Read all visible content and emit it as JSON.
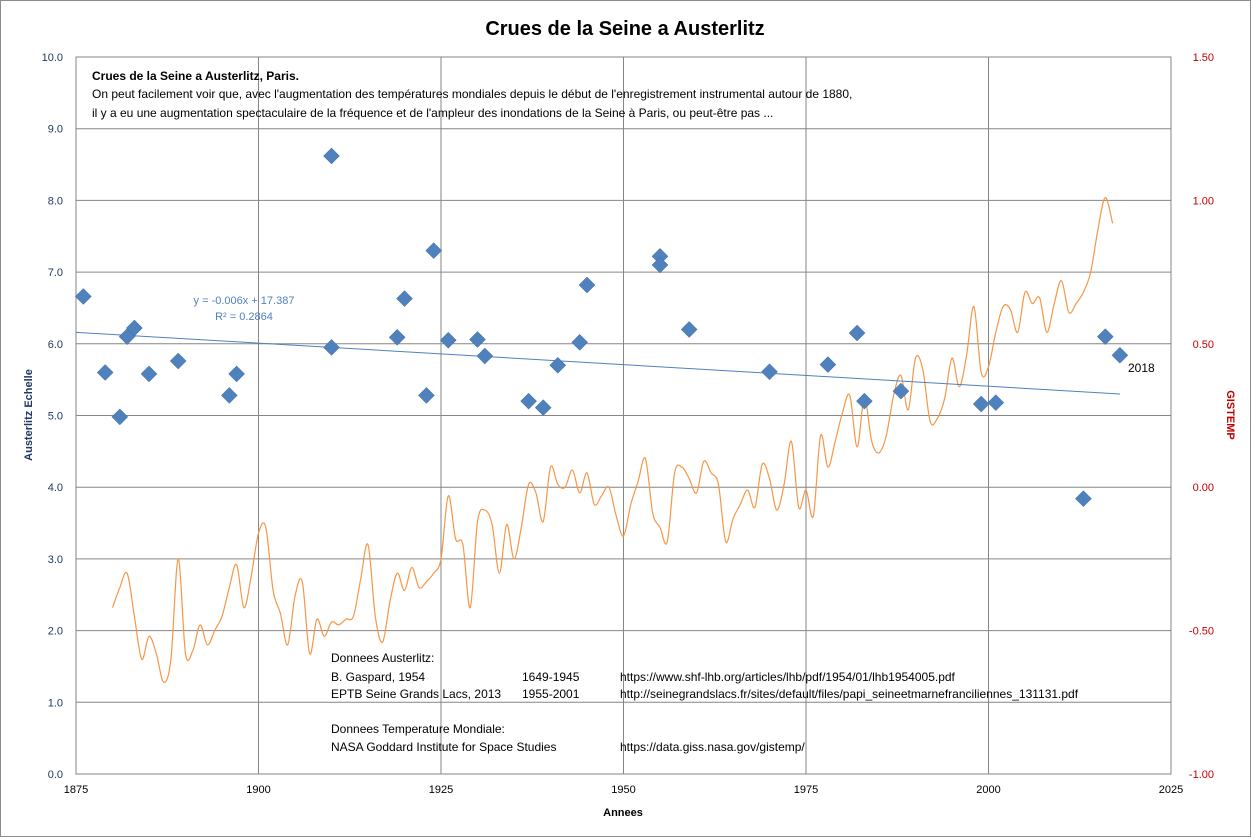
{
  "chart_data": {
    "type": "scatter",
    "title": "Crues de la Seine a Austerlitz",
    "xlabel": "Annees",
    "ylabel": "Austerlitz  Echelle",
    "y2label": "GISTEMP",
    "xlim": [
      1875,
      2025
    ],
    "ylim": [
      0,
      10
    ],
    "y2lim": [
      -1.0,
      1.5
    ],
    "x_ticks": [
      "1875",
      "1900",
      "1925",
      "1950",
      "1975",
      "2000",
      "2025"
    ],
    "y_ticks": [
      "0.0",
      "1.0",
      "2.0",
      "3.0",
      "4.0",
      "5.0",
      "6.0",
      "7.0",
      "8.0",
      "9.0",
      "10.0"
    ],
    "y2_ticks": [
      "-1.00",
      "-0.50",
      "0.00",
      "0.50",
      "1.00",
      "1.50"
    ],
    "grid": true,
    "colors": {
      "points": "#4f81bd",
      "temperature": "#f79646",
      "trend": "#4f81bd",
      "right_axis": "#c00000"
    },
    "series": [
      {
        "type": "scatter",
        "axis": "left",
        "points": [
          [
            1876,
            6.66
          ],
          [
            1879,
            5.6
          ],
          [
            1881,
            4.98
          ],
          [
            1882,
            6.1
          ],
          [
            1883,
            6.22
          ],
          [
            1885,
            5.58
          ],
          [
            1889,
            5.76
          ],
          [
            1896,
            5.28
          ],
          [
            1897,
            5.58
          ],
          [
            1910,
            8.62
          ],
          [
            1910,
            5.95
          ],
          [
            1919,
            6.09
          ],
          [
            1920,
            6.63
          ],
          [
            1923,
            5.28
          ],
          [
            1924,
            7.3
          ],
          [
            1926,
            6.05
          ],
          [
            1930,
            6.06
          ],
          [
            1931,
            5.83
          ],
          [
            1937,
            5.2
          ],
          [
            1939,
            5.11
          ],
          [
            1941,
            5.7
          ],
          [
            1944,
            6.02
          ],
          [
            1945,
            6.82
          ],
          [
            1955,
            7.22
          ],
          [
            1955,
            7.1
          ],
          [
            1959,
            6.2
          ],
          [
            1970,
            5.61
          ],
          [
            1978,
            5.71
          ],
          [
            1982,
            6.15
          ],
          [
            1983,
            5.2
          ],
          [
            1988,
            5.34
          ],
          [
            1999,
            5.16
          ],
          [
            2001,
            5.18
          ],
          [
            2013,
            3.84
          ],
          [
            2016,
            6.1
          ],
          [
            2018,
            5.84
          ]
        ]
      },
      {
        "type": "line",
        "axis": "right",
        "x": [
          1880,
          1881,
          1882,
          1883,
          1884,
          1885,
          1886,
          1887,
          1888,
          1889,
          1890,
          1891,
          1892,
          1893,
          1894,
          1895,
          1896,
          1897,
          1898,
          1899,
          1900,
          1901,
          1902,
          1903,
          1904,
          1905,
          1906,
          1907,
          1908,
          1909,
          1910,
          1911,
          1912,
          1913,
          1914,
          1915,
          1916,
          1917,
          1918,
          1919,
          1920,
          1921,
          1922,
          1923,
          1924,
          1925,
          1926,
          1927,
          1928,
          1929,
          1930,
          1931,
          1932,
          1933,
          1934,
          1935,
          1936,
          1937,
          1938,
          1939,
          1940,
          1941,
          1942,
          1943,
          1944,
          1945,
          1946,
          1947,
          1948,
          1949,
          1950,
          1951,
          1952,
          1953,
          1954,
          1955,
          1956,
          1957,
          1958,
          1959,
          1960,
          1961,
          1962,
          1963,
          1964,
          1965,
          1966,
          1967,
          1968,
          1969,
          1970,
          1971,
          1972,
          1973,
          1974,
          1975,
          1976,
          1977,
          1978,
          1979,
          1980,
          1981,
          1982,
          1983,
          1984,
          1985,
          1986,
          1987,
          1988,
          1989,
          1990,
          1991,
          1992,
          1993,
          1994,
          1995,
          1996,
          1997,
          1998,
          1999,
          2000,
          2001,
          2002,
          2003,
          2004,
          2005,
          2006,
          2007,
          2008,
          2009,
          2010,
          2011,
          2012,
          2013,
          2014,
          2015,
          2016,
          2017
        ],
        "values": [
          -0.42,
          -0.35,
          -0.3,
          -0.45,
          -0.6,
          -0.52,
          -0.58,
          -0.68,
          -0.6,
          -0.25,
          -0.58,
          -0.57,
          -0.48,
          -0.55,
          -0.5,
          -0.45,
          -0.35,
          -0.27,
          -0.42,
          -0.31,
          -0.16,
          -0.14,
          -0.36,
          -0.44,
          -0.55,
          -0.38,
          -0.33,
          -0.58,
          -0.46,
          -0.52,
          -0.47,
          -0.48,
          -0.46,
          -0.45,
          -0.32,
          -0.2,
          -0.45,
          -0.54,
          -0.4,
          -0.3,
          -0.36,
          -0.28,
          -0.35,
          -0.33,
          -0.3,
          -0.25,
          -0.03,
          -0.18,
          -0.2,
          -0.42,
          -0.12,
          -0.08,
          -0.13,
          -0.3,
          -0.13,
          -0.25,
          -0.14,
          0.01,
          -0.02,
          -0.12,
          0.07,
          0.01,
          0.0,
          0.06,
          -0.02,
          0.05,
          -0.06,
          -0.03,
          0.0,
          -0.1,
          -0.17,
          -0.06,
          0.02,
          0.1,
          -0.09,
          -0.14,
          -0.19,
          0.05,
          0.07,
          0.03,
          -0.02,
          0.09,
          0.05,
          0.01,
          -0.19,
          -0.11,
          -0.06,
          -0.01,
          -0.07,
          0.08,
          0.03,
          -0.08,
          0.01,
          0.16,
          -0.07,
          -0.01,
          -0.1,
          0.18,
          0.07,
          0.16,
          0.26,
          0.32,
          0.14,
          0.31,
          0.16,
          0.12,
          0.18,
          0.32,
          0.39,
          0.27,
          0.45,
          0.41,
          0.23,
          0.24,
          0.31,
          0.45,
          0.35,
          0.46,
          0.63,
          0.4,
          0.42,
          0.54,
          0.63,
          0.62,
          0.54,
          0.68,
          0.64,
          0.66,
          0.54,
          0.64,
          0.72,
          0.61,
          0.64,
          0.68,
          0.75,
          0.9,
          1.01,
          0.92
        ]
      },
      {
        "type": "line",
        "axis": "left",
        "name": "trendline",
        "x": [
          1875,
          2018
        ],
        "values": [
          6.16,
          5.3
        ]
      }
    ],
    "trendline_equation": "y = -0.006x + 17.387",
    "trendline_r2": "R² = 0.2864",
    "point_label": "2018",
    "annotation": {
      "heading": "Crues de la Seine a Austerlitz, Paris.",
      "lines": [
        "On peut facilement voir que, avec l'augmentation des températures mondiales depuis le début de l'enregistrement  instrumental autour de 1880,",
        "il y a eu une augmentation spectaculaire de la fréquence et de l'ampleur des inondations de la Seine à Paris, ou peut-être pas ..."
      ]
    },
    "sources": {
      "austerlitz_heading": "Donnees Austerlitz:",
      "rows": [
        {
          "name": "B. Gaspard, 1954",
          "years": "1649-1945",
          "url": "https://www.shf-lhb.org/articles/lhb/pdf/1954/01/lhb1954005.pdf"
        },
        {
          "name": "EPTB Seine Grands Lacs, 2013",
          "years": "1955-2001",
          "url": "http://seinegrandslacs.fr/sites/default/files/papi_seineetmarnefranciliennes_131131.pdf"
        }
      ],
      "temperature_heading": "Donnees Temperature Mondiale:",
      "temperature_row": {
        "name": "NASA Goddard Institute for Space Studies",
        "url": "https://data.giss.nasa.gov/gistemp/"
      }
    }
  }
}
